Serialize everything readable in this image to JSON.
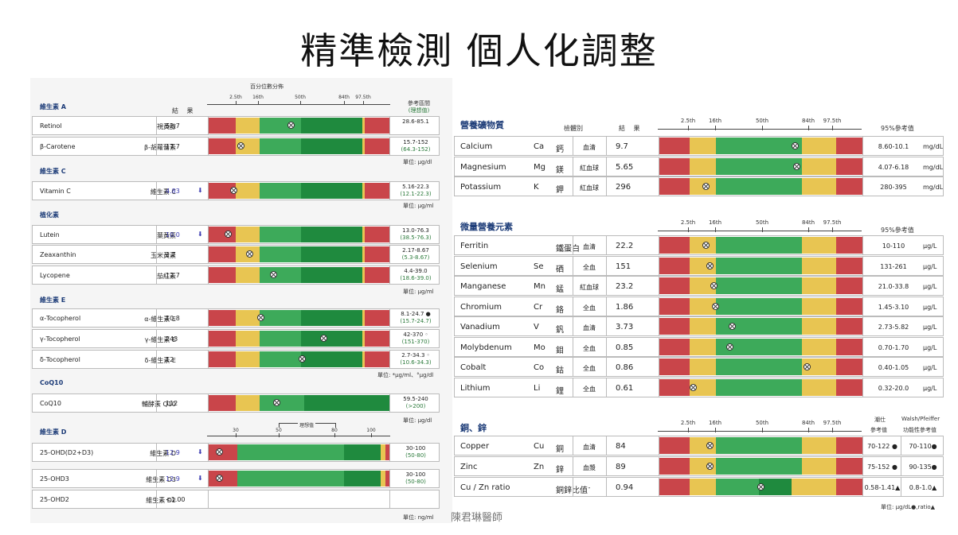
{
  "title": "精準檢測 個人化調整",
  "footer": "陳君琳醫師",
  "colors": {
    "red": "#c9454a",
    "yellow": "#e8c552",
    "green": "#3daa5a",
    "dgreen": "#1f8a3e",
    "navy": "#1d3c78"
  },
  "left": {
    "percentile_title": "百分位數分佈",
    "ticks": [
      "2.5th",
      "16th",
      "50th",
      "84th",
      "97.5th"
    ],
    "result_header": "結 果",
    "ref_header": "參考區間",
    "ref_header2": "(理想值)",
    "sections": {
      "vitA": "維生素 A",
      "vitC": "維生素 C",
      "phyto": "植化素",
      "vitE": "維生素 E",
      "coq10": "CoQ10",
      "vitD": "維生素 D"
    },
    "rows": [
      {
        "en": "Retinol",
        "cn": "視黃醇",
        "value": "52.7",
        "low": false,
        "ref1": "28.6-85.1",
        "ref2": "",
        "pos": 0.46
      },
      {
        "en": "β-Carotene",
        "cn": "β-胡蘿蔔素",
        "value": "17.7",
        "low": false,
        "ref1": "15.7-152",
        "ref2": "(64.3-152)",
        "pos": 0.18
      },
      {
        "en": "Vitamin C",
        "cn": "維生素 C",
        "value": "4.83",
        "low": true,
        "ref1": "5.16-22.3",
        "ref2": "(12.1-22.3)",
        "pos": 0.14
      },
      {
        "en": "Lutein",
        "cn": "葉黃素",
        "value": "10.0",
        "low": true,
        "ref1": "13.0-76.3",
        "ref2": "(38.5-76.3)",
        "pos": 0.11
      },
      {
        "en": "Zeaxanthin",
        "cn": "玉米黃素",
        "value": "2.7",
        "low": false,
        "ref1": "2.17-8.67",
        "ref2": "(5.3-8.67)",
        "pos": 0.23
      },
      {
        "en": "Lycopene",
        "cn": "茄紅素",
        "value": "12.7",
        "low": false,
        "ref1": "4.4-39.0",
        "ref2": "(18.6-39.0)",
        "pos": 0.36
      },
      {
        "en": "α-Tocopherol",
        "cn": "α-維生素 E",
        "value": "10.8",
        "low": false,
        "ref1": "8.1-24.7 ●",
        "ref2": "(15.7-24.7)",
        "pos": 0.29
      },
      {
        "en": "γ-Tocopherol",
        "cn": "γ-維生素 E",
        "value": "243",
        "low": false,
        "ref1": "42-370 ◦",
        "ref2": "(151-370)",
        "pos": 0.64
      },
      {
        "en": "δ-Tocopherol",
        "cn": "δ-維生素 E",
        "value": "12",
        "low": false,
        "ref1": "2.7-34.3 ◦",
        "ref2": "(10.6-34.3)",
        "pos": 0.52
      },
      {
        "en": "CoQ10",
        "cn": "輔酵素 Q10",
        "value": "112",
        "low": false,
        "ref1": "59.5-240",
        "ref2": "(>200)",
        "pos": 0.38
      },
      {
        "en": "25-OHD(D2+D3)",
        "cn": "維生素 D",
        "value": "12.9",
        "low": true,
        "ref1": "30-100",
        "ref2": "(50-80)",
        "pos": 0.06
      },
      {
        "en": "25-OHD3",
        "cn": "維生素 D3",
        "value": "12.9",
        "low": true,
        "ref1": "30-100",
        "ref2": "(50-80)",
        "pos": 0.06
      },
      {
        "en": "25-OHD2",
        "cn": "維生素 D2",
        "value": "<1.00",
        "low": false,
        "ref1": "",
        "ref2": "",
        "pos": null
      }
    ],
    "units": {
      "u1": "單位: μg/dl",
      "u2": "單位: μg/ml",
      "u3": "單位: μg/ml",
      "u4": "單位: *μg/ml、°μg/dl",
      "u5": "單位: μg/dl",
      "u6": "單位: ng/ml"
    },
    "vd_axis": {
      "ticks": [
        "30",
        "50",
        "80",
        "100"
      ],
      "label": "理想值"
    }
  },
  "right": {
    "minerals_title": "營養礦物質",
    "trace_title": "微量營養元素",
    "cuzn_title": "銅、鋅",
    "ticks": [
      "2.5th",
      "16th",
      "50th",
      "84th",
      "97.5th"
    ],
    "sample_header": "檢體別",
    "result_header": "結 果",
    "ref_header": "95%參考值",
    "cuzn_ref_header1": "潮仕",
    "cuzn_ref_header1b": "參考值",
    "cuzn_ref_header2": "Walsh/Pfeiffer",
    "cuzn_ref_header2b": "功能性參考值",
    "minerals": [
      {
        "en": "Calcium",
        "sym": "Ca",
        "cn": "鈣",
        "sample": "血清",
        "value": "9.7",
        "ref": "8.60-10.1",
        "unit": "mg/dL",
        "pos": 0.67
      },
      {
        "en": "Magnesium",
        "sym": "Mg",
        "cn": "鎂",
        "sample": "紅血球",
        "value": "5.65",
        "ref": "4.07-6.18",
        "unit": "mg/dL",
        "pos": 0.68
      },
      {
        "en": "Potassium",
        "sym": "K",
        "cn": "鉀",
        "sample": "紅血球",
        "value": "296",
        "ref": "280-395",
        "unit": "mg/dL",
        "pos": 0.23
      }
    ],
    "trace": [
      {
        "en": "Ferritin",
        "sym": "",
        "cn": "鐵蛋白",
        "sample": "血清",
        "value": "22.2",
        "ref": "10-110",
        "unit": "μg/L",
        "pos": 0.23
      },
      {
        "en": "Selenium",
        "sym": "Se",
        "cn": "硒",
        "sample": "全血",
        "value": "151",
        "ref": "131-261",
        "unit": "μg/L",
        "pos": 0.25
      },
      {
        "en": "Manganese",
        "sym": "Mn",
        "cn": "錳",
        "sample": "紅血球",
        "value": "23.2",
        "ref": "21.0-33.8",
        "unit": "μg/L",
        "pos": 0.27
      },
      {
        "en": "Chromium",
        "sym": "Cr",
        "cn": "鉻",
        "sample": "全血",
        "value": "1.86",
        "ref": "1.45-3.10",
        "unit": "μg/L",
        "pos": 0.28
      },
      {
        "en": "Vanadium",
        "sym": "V",
        "cn": "釩",
        "sample": "血清",
        "value": "3.73",
        "ref": "2.73-5.82",
        "unit": "μg/L",
        "pos": 0.36
      },
      {
        "en": "Molybdenum",
        "sym": "Mo",
        "cn": "鉬",
        "sample": "全血",
        "value": "0.85",
        "ref": "0.70-1.70",
        "unit": "μg/L",
        "pos": 0.35
      },
      {
        "en": "Cobalt",
        "sym": "Co",
        "cn": "鈷",
        "sample": "全血",
        "value": "0.86",
        "ref": "0.40-1.05",
        "unit": "μg/L",
        "pos": 0.73
      },
      {
        "en": "Lithium",
        "sym": "Li",
        "cn": "鋰",
        "sample": "全血",
        "value": "0.61",
        "ref": "0.32-20.0",
        "unit": "μg/L",
        "pos": 0.17
      }
    ],
    "cuzn": [
      {
        "en": "Copper",
        "sym": "Cu",
        "cn": "銅",
        "sample": "血清",
        "value": "84",
        "ref": "70-122 ●",
        "ref2": "70-110●",
        "pos": 0.25
      },
      {
        "en": "Zinc",
        "sym": "Zn",
        "cn": "鋅",
        "sample": "血漿",
        "value": "89",
        "ref": "75-152 ●",
        "ref2": "90-135●",
        "pos": 0.25
      },
      {
        "en": "Cu / Zn ratio",
        "sym": "",
        "cn": "銅鋅比值",
        "sample": "-",
        "value": "0.94",
        "ref": "0.58-1.41▲",
        "ref2": "0.8-1.0▲",
        "pos": 0.5
      }
    ],
    "unit_note": "單位: μg/dL●,ratio▲"
  }
}
